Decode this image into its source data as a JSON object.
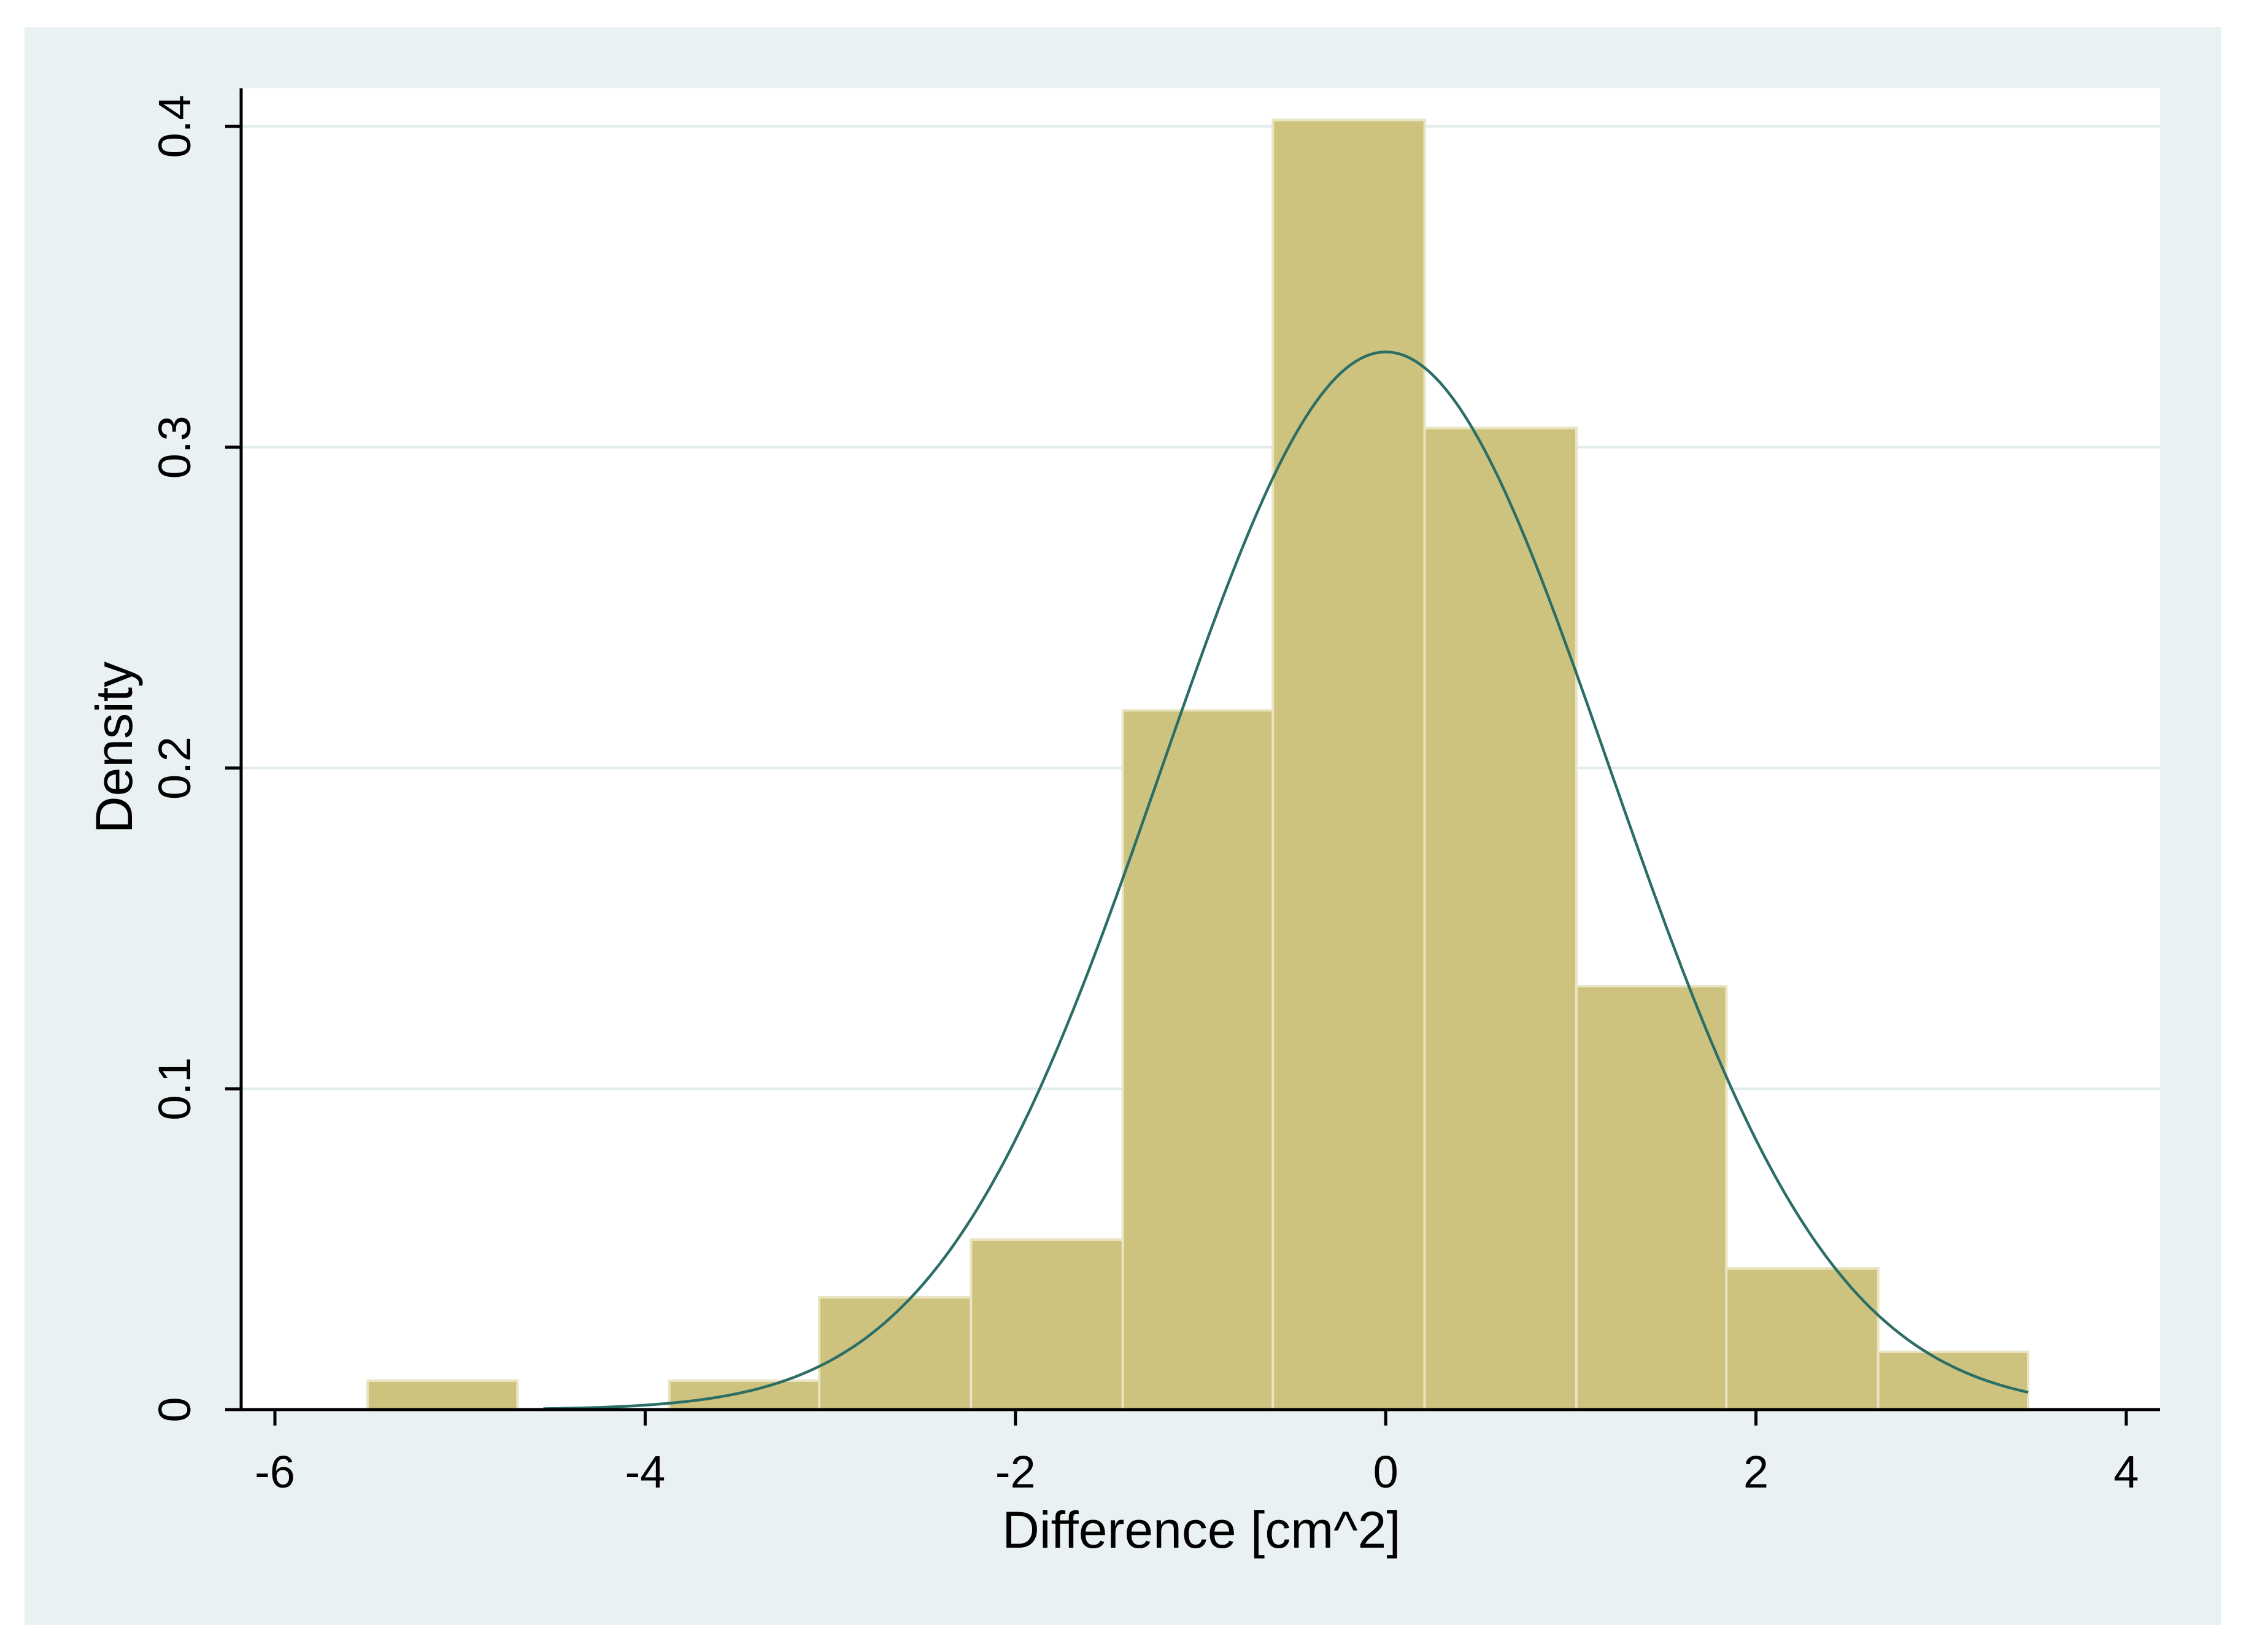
{
  "chart_data": {
    "type": "bar",
    "subtype": "histogram",
    "title": "",
    "xlabel": "Difference [cm^2]",
    "ylabel": "Density",
    "xlim": [
      -6.1,
      4.1
    ],
    "ylim": [
      0,
      0.41
    ],
    "xticks": [
      -6,
      -4,
      -2,
      0,
      2,
      4
    ],
    "yticks": [
      0,
      0.1,
      0.2,
      0.3,
      0.4
    ],
    "x_tick_labels": [
      "-6",
      "-4",
      "-2",
      "0",
      "2",
      "4"
    ],
    "y_tick_labels": [
      "0",
      "0.1",
      "0.2",
      "0.3",
      "0.4"
    ],
    "grid": true,
    "bins": [
      {
        "x0": -5.5,
        "x1": -4.69,
        "value": 0.009
      },
      {
        "x0": -4.69,
        "x1": -3.87,
        "value": 0.0
      },
      {
        "x0": -3.87,
        "x1": -3.06,
        "value": 0.009
      },
      {
        "x0": -3.06,
        "x1": -2.24,
        "value": 0.035
      },
      {
        "x0": -2.24,
        "x1": -1.42,
        "value": 0.053
      },
      {
        "x0": -1.42,
        "x1": -0.61,
        "value": 0.218
      },
      {
        "x0": -0.61,
        "x1": 0.21,
        "value": 0.402
      },
      {
        "x0": 0.21,
        "x1": 1.03,
        "value": 0.306
      },
      {
        "x0": 1.03,
        "x1": 1.84,
        "value": 0.132
      },
      {
        "x0": 1.84,
        "x1": 2.66,
        "value": 0.044
      },
      {
        "x0": 2.66,
        "x1": 3.47,
        "value": 0.018
      }
    ],
    "density_curve": {
      "type": "normal",
      "mean": 0.0,
      "sd": 1.21,
      "x_range": [
        -4.55,
        3.47
      ]
    },
    "colors": {
      "outer_background": "#eaf1f3",
      "plot_background": "#ffffff",
      "bar_fill": "#cdc37f",
      "bar_edge": "#e9e4c2",
      "curve": "#2b6e66",
      "gridline": "#e2ecef",
      "axis": "#000000"
    }
  }
}
